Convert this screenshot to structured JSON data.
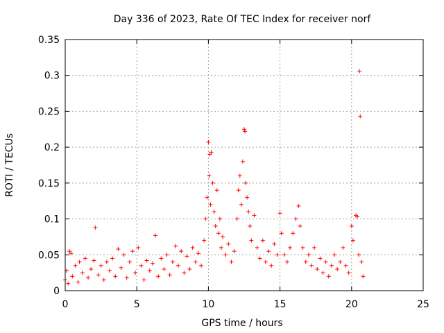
{
  "chart_data": {
    "type": "scatter",
    "title": "Day 336 of 2023, Rate Of TEC Index for receiver norf",
    "xlabel": "GPS time / hours",
    "ylabel": "ROTI / TECUs",
    "xlim": [
      0,
      25
    ],
    "ylim": [
      0,
      0.35
    ],
    "xticks": [
      0,
      5,
      10,
      15,
      20,
      25
    ],
    "xtick_labels": [
      "0",
      "5",
      "10",
      "15",
      "20",
      "25"
    ],
    "yticks": [
      0,
      0.05,
      0.1,
      0.15,
      0.2,
      0.25,
      0.3,
      0.35
    ],
    "ytick_labels": [
      "0",
      "0.05",
      "0.1",
      "0.15",
      "0.2",
      "0.25",
      "0.3",
      "0.35"
    ],
    "grid": true,
    "marker": "plus",
    "color": "#ff0000",
    "series": [
      {
        "name": "",
        "points": [
          [
            0.0,
            0.015
          ],
          [
            0.1,
            0.028
          ],
          [
            0.2,
            0.01
          ],
          [
            0.3,
            0.055
          ],
          [
            0.4,
            0.052
          ],
          [
            0.5,
            0.02
          ],
          [
            0.7,
            0.035
          ],
          [
            0.9,
            0.012
          ],
          [
            1.0,
            0.04
          ],
          [
            1.2,
            0.025
          ],
          [
            1.4,
            0.045
          ],
          [
            1.6,
            0.018
          ],
          [
            1.8,
            0.03
          ],
          [
            2.0,
            0.042
          ],
          [
            2.1,
            0.088
          ],
          [
            2.3,
            0.022
          ],
          [
            2.5,
            0.035
          ],
          [
            2.7,
            0.015
          ],
          [
            2.9,
            0.04
          ],
          [
            3.1,
            0.028
          ],
          [
            3.3,
            0.045
          ],
          [
            3.5,
            0.02
          ],
          [
            3.7,
            0.058
          ],
          [
            3.9,
            0.032
          ],
          [
            4.1,
            0.05
          ],
          [
            4.3,
            0.018
          ],
          [
            4.5,
            0.04
          ],
          [
            4.7,
            0.055
          ],
          [
            4.9,
            0.025
          ],
          [
            5.1,
            0.06
          ],
          [
            5.3,
            0.035
          ],
          [
            5.5,
            0.015
          ],
          [
            5.7,
            0.042
          ],
          [
            5.9,
            0.028
          ],
          [
            6.1,
            0.038
          ],
          [
            6.3,
            0.077
          ],
          [
            6.5,
            0.02
          ],
          [
            6.7,
            0.045
          ],
          [
            6.9,
            0.03
          ],
          [
            7.1,
            0.05
          ],
          [
            7.3,
            0.022
          ],
          [
            7.5,
            0.04
          ],
          [
            7.7,
            0.062
          ],
          [
            7.9,
            0.035
          ],
          [
            8.1,
            0.055
          ],
          [
            8.3,
            0.025
          ],
          [
            8.5,
            0.048
          ],
          [
            8.7,
            0.03
          ],
          [
            8.9,
            0.06
          ],
          [
            9.1,
            0.04
          ],
          [
            9.3,
            0.052
          ],
          [
            9.5,
            0.035
          ],
          [
            9.7,
            0.07
          ],
          [
            9.8,
            0.1
          ],
          [
            9.9,
            0.13
          ],
          [
            10.0,
            0.207
          ],
          [
            10.05,
            0.16
          ],
          [
            10.1,
            0.19
          ],
          [
            10.15,
            0.12
          ],
          [
            10.2,
            0.193
          ],
          [
            10.3,
            0.15
          ],
          [
            10.4,
            0.11
          ],
          [
            10.5,
            0.09
          ],
          [
            10.6,
            0.14
          ],
          [
            10.7,
            0.08
          ],
          [
            10.8,
            0.1
          ],
          [
            10.9,
            0.06
          ],
          [
            11.0,
            0.075
          ],
          [
            11.2,
            0.05
          ],
          [
            11.4,
            0.065
          ],
          [
            11.6,
            0.04
          ],
          [
            11.8,
            0.055
          ],
          [
            12.0,
            0.1
          ],
          [
            12.1,
            0.14
          ],
          [
            12.2,
            0.16
          ],
          [
            12.3,
            0.12
          ],
          [
            12.4,
            0.18
          ],
          [
            12.5,
            0.225
          ],
          [
            12.55,
            0.222
          ],
          [
            12.6,
            0.15
          ],
          [
            12.7,
            0.13
          ],
          [
            12.8,
            0.11
          ],
          [
            12.9,
            0.09
          ],
          [
            13.0,
            0.07
          ],
          [
            13.2,
            0.105
          ],
          [
            13.4,
            0.06
          ],
          [
            13.6,
            0.045
          ],
          [
            13.8,
            0.07
          ],
          [
            14.0,
            0.04
          ],
          [
            14.2,
            0.055
          ],
          [
            14.4,
            0.035
          ],
          [
            14.6,
            0.065
          ],
          [
            14.8,
            0.05
          ],
          [
            15.0,
            0.108
          ],
          [
            15.1,
            0.08
          ],
          [
            15.3,
            0.05
          ],
          [
            15.5,
            0.04
          ],
          [
            15.7,
            0.06
          ],
          [
            15.9,
            0.08
          ],
          [
            16.1,
            0.1
          ],
          [
            16.3,
            0.118
          ],
          [
            16.4,
            0.09
          ],
          [
            16.6,
            0.06
          ],
          [
            16.8,
            0.04
          ],
          [
            17.0,
            0.05
          ],
          [
            17.2,
            0.035
          ],
          [
            17.4,
            0.06
          ],
          [
            17.6,
            0.03
          ],
          [
            17.8,
            0.045
          ],
          [
            18.0,
            0.025
          ],
          [
            18.2,
            0.04
          ],
          [
            18.4,
            0.02
          ],
          [
            18.6,
            0.035
          ],
          [
            18.8,
            0.05
          ],
          [
            19.0,
            0.03
          ],
          [
            19.2,
            0.04
          ],
          [
            19.4,
            0.06
          ],
          [
            19.6,
            0.035
          ],
          [
            19.8,
            0.025
          ],
          [
            20.0,
            0.09
          ],
          [
            20.1,
            0.07
          ],
          [
            20.3,
            0.105
          ],
          [
            20.4,
            0.103
          ],
          [
            20.5,
            0.05
          ],
          [
            20.55,
            0.306
          ],
          [
            20.6,
            0.243
          ],
          [
            20.7,
            0.04
          ],
          [
            20.8,
            0.02
          ]
        ]
      }
    ]
  }
}
